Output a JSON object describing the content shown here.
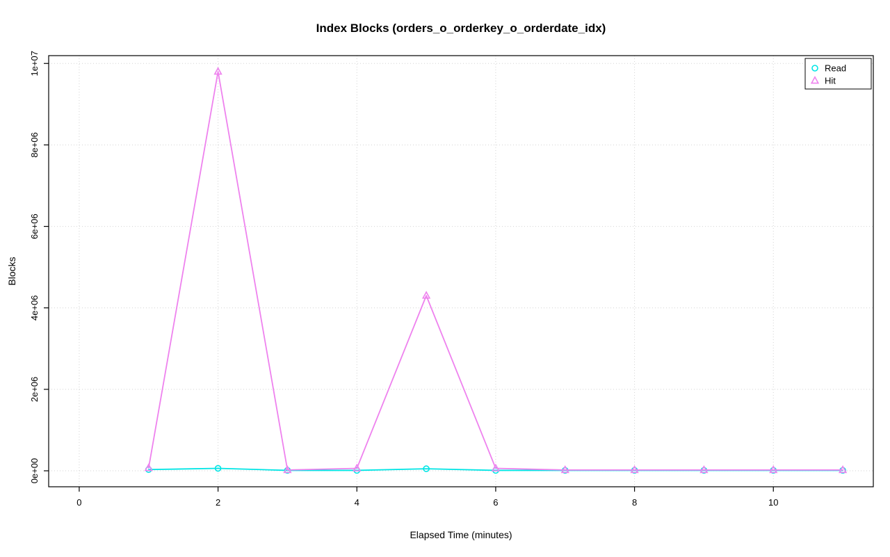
{
  "chart": {
    "title": "Index Blocks (orders_o_orderkey_o_orderdate_idx)",
    "xlabel": "Elapsed Time (minutes)",
    "ylabel": "Blocks"
  },
  "chart_data": {
    "type": "line",
    "title": "Index Blocks (orders_o_orderkey_o_orderdate_idx)",
    "xlabel": "Elapsed Time (minutes)",
    "ylabel": "Blocks",
    "x": [
      1,
      2,
      3,
      4,
      5,
      6,
      7,
      8,
      9,
      10,
      11
    ],
    "series": [
      {
        "name": "Read",
        "color": "#00E5E5",
        "marker": "circle",
        "values": [
          30000,
          60000,
          10000,
          10000,
          50000,
          10000,
          10000,
          10000,
          10000,
          10000,
          10000
        ]
      },
      {
        "name": "Hit",
        "color": "#EE82EE",
        "marker": "triangle",
        "values": [
          70000,
          9800000,
          20000,
          60000,
          4300000,
          60000,
          20000,
          20000,
          20000,
          20000,
          20000
        ]
      }
    ],
    "xlim": [
      -0.44,
      11.44
    ],
    "ylim": [
      -392000,
      10192000
    ],
    "x_ticks": [
      0,
      2,
      4,
      6,
      8,
      10
    ],
    "x_tick_labels": [
      "0",
      "2",
      "4",
      "6",
      "8",
      "10"
    ],
    "y_ticks": [
      0,
      2000000,
      4000000,
      6000000,
      8000000,
      10000000
    ],
    "y_tick_labels": [
      "0e+00",
      "2e+06",
      "4e+06",
      "6e+06",
      "8e+06",
      "1e+07"
    ],
    "grid": true,
    "grid_color": "#d2d2d2",
    "box_color": "#000000",
    "legend_position": "top-right"
  }
}
